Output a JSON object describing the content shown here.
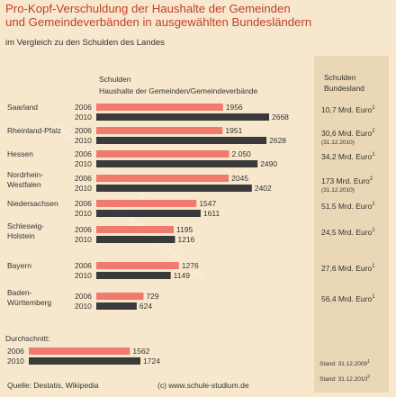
{
  "title_line1": "Pro-Kopf-Verschuldung der Haushalte der Gemeinden",
  "title_line2": "und Gemeindeverbänden in ausgewählten Bundesländern",
  "subtitle": "im Vergleich zu den Schulden des Landes",
  "col_header_left_1": "Schulden",
  "col_header_left_2": "Haushalte der Gemeinden/Gemeindeverbände",
  "col_header_right_1": "Schulden",
  "col_header_right_2": "Bundesland",
  "watermark": "www.schule-studium.de",
  "source": "Quelle: Destatis, Wikipedia",
  "copyright": "(c) www.schule-studium.de",
  "stand_1": "Stand: 31.12.2009",
  "stand_2": "Stand: 31.12.2010",
  "colors": {
    "bar2006": "#f07a6e",
    "bar2010": "#3a3a3a",
    "background": "#f7e8cd",
    "right_panel": "#ead7b6",
    "title": "#c0412a"
  },
  "chart_data": {
    "type": "bar",
    "orientation": "horizontal",
    "series_keys": [
      "2006",
      "2010"
    ],
    "categories": [
      {
        "name": [
          "Saarland"
        ],
        "v2006": 1956,
        "v2010": 2668,
        "l2006": "1956",
        "l2010": "2668",
        "state_debt": "10,7 Mrd. Euro",
        "sup": "1",
        "note": ""
      },
      {
        "name": [
          "Rheinland-Pfalz"
        ],
        "v2006": 1951,
        "v2010": 2628,
        "l2006": "1951",
        "l2010": "2628",
        "state_debt": "30,6 Mrd. Euro",
        "sup": "2",
        "note": "(31.12.2010)"
      },
      {
        "name": [
          "Hessen"
        ],
        "v2006": 2050,
        "v2010": 2490,
        "l2006": "2.050",
        "l2010": "2490",
        "state_debt": "34,2 Mrd. Euro",
        "sup": "1",
        "note": ""
      },
      {
        "name": [
          "Nordrhein-",
          "Westfalen"
        ],
        "v2006": 2045,
        "v2010": 2402,
        "l2006": "2045",
        "l2010": "2402",
        "state_debt": "173 Mrd. Euro",
        "sup": "2",
        "note": "(31.12.2010)"
      },
      {
        "name": [
          "Niedersachsen"
        ],
        "v2006": 1547,
        "v2010": 1611,
        "l2006": "1547",
        "l2010": "1611",
        "state_debt": "51,5 Mrd. Euro",
        "sup": "1",
        "note": ""
      },
      {
        "name": [
          "Schleswig-",
          "Holstein"
        ],
        "v2006": 1195,
        "v2010": 1216,
        "l2006": "1195",
        "l2010": "1216",
        "state_debt": "24,5 Mrd. Euro",
        "sup": "1",
        "note": ""
      },
      {
        "name": [
          "Bayern"
        ],
        "v2006": 1276,
        "v2010": 1149,
        "l2006": "1276",
        "l2010": "1149",
        "state_debt": "27,6 Mrd. Euro",
        "sup": "1",
        "note": ""
      },
      {
        "name": [
          "Baden-",
          "Württemberg"
        ],
        "v2006": 729,
        "v2010": 624,
        "l2006": "729",
        "l2010": "624",
        "state_debt": "56,4 Mrd. Euro",
        "sup": "1",
        "note": ""
      }
    ],
    "average": {
      "label": "Durchschnitt:",
      "v2006": 1562,
      "v2010": 1724,
      "l2006": "1562",
      "l2010": "1724"
    },
    "xlim": [
      0,
      2668
    ]
  }
}
